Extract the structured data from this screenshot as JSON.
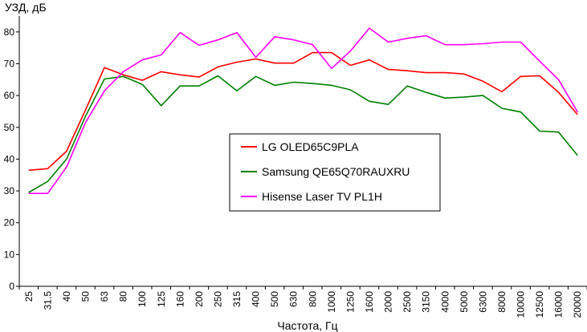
{
  "chart_data": {
    "type": "line",
    "ylabel": "УЗД, дБ",
    "xlabel": "Частота, Гц",
    "ylim": [
      0,
      85
    ],
    "yticks": [
      0,
      10,
      20,
      30,
      40,
      50,
      60,
      70,
      80
    ],
    "grid": false,
    "legend_position": "center",
    "categories": [
      "25",
      "31.5",
      "40",
      "50",
      "63",
      "80",
      "100",
      "125",
      "160",
      "200",
      "250",
      "315",
      "400",
      "500",
      "630",
      "800",
      "1000",
      "1250",
      "1600",
      "2000",
      "2500",
      "3150",
      "4000",
      "5000",
      "6300",
      "8000",
      "10000",
      "12500",
      "16000",
      "20000"
    ],
    "series": [
      {
        "name": "LG OLED65C9PLA",
        "color": "#ff0000",
        "values": [
          36.5,
          37,
          42.5,
          55.5,
          68.8,
          66.5,
          64.8,
          67.5,
          66.5,
          65.8,
          69,
          70.5,
          71.5,
          70.2,
          70.2,
          73.5,
          73.5,
          69.5,
          71.2,
          68.2,
          67.8,
          67.2,
          67.2,
          66.8,
          64.5,
          61.2,
          66,
          66.2,
          61,
          54
        ]
      },
      {
        "name": "Samsung QE65Q70RAUXRU",
        "color": "#008000",
        "values": [
          29.5,
          33,
          40,
          53.5,
          65.2,
          66,
          63.5,
          56.8,
          63,
          63,
          66.2,
          61.5,
          66,
          63.2,
          64.2,
          63.8,
          63.2,
          61.8,
          58.2,
          57.2,
          63,
          61,
          59.2,
          59.5,
          60,
          56,
          54.8,
          48.8,
          48.5,
          41.2
        ]
      },
      {
        "name": "Hisense Laser TV PL1H",
        "color": "#ff00ff",
        "values": [
          29.2,
          29.2,
          37.5,
          51.5,
          61.5,
          67.5,
          71.2,
          72.8,
          79.8,
          75.8,
          77.5,
          79.8,
          72,
          78.5,
          77.5,
          76,
          68.5,
          74,
          81.2,
          76.8,
          78,
          78.8,
          76,
          76,
          76.3,
          76.8,
          76.8,
          70.8,
          65,
          54.8
        ]
      }
    ]
  }
}
